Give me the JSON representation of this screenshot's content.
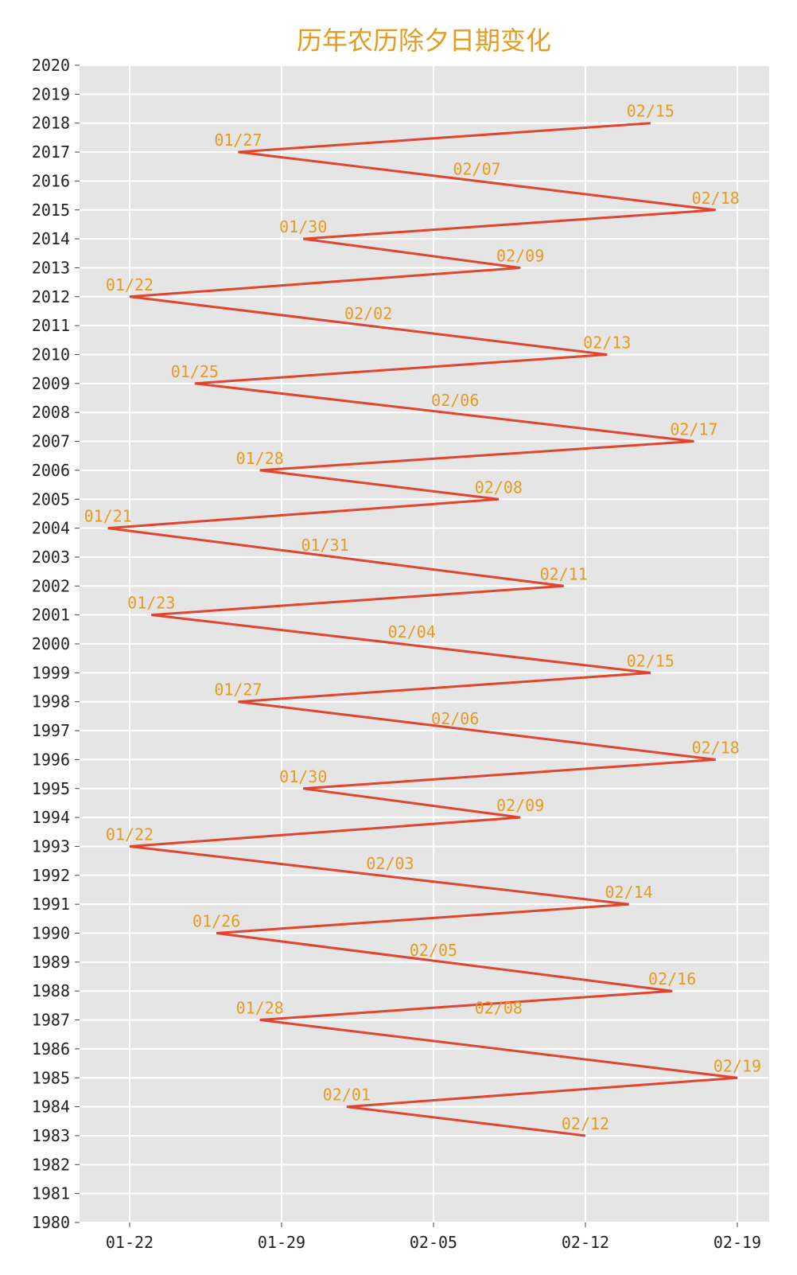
{
  "chart_data": {
    "type": "line",
    "title": "历年农历除夕日期变化",
    "xlabel": "",
    "ylabel": "",
    "x_tick_labels": [
      "01-22",
      "01-29",
      "02-05",
      "02-12",
      "02-19"
    ],
    "x_tick_days": [
      22,
      29,
      36,
      43,
      50
    ],
    "xlim_days": [
      19.5,
      51.5
    ],
    "ylim": [
      1980,
      2020
    ],
    "y_ticks": [
      1980,
      1981,
      1982,
      1983,
      1984,
      1985,
      1986,
      1987,
      1988,
      1989,
      1990,
      1991,
      1992,
      1993,
      1994,
      1995,
      1996,
      1997,
      1998,
      1999,
      2000,
      2001,
      2002,
      2003,
      2004,
      2005,
      2006,
      2007,
      2008,
      2009,
      2010,
      2011,
      2012,
      2013,
      2014,
      2015,
      2016,
      2017,
      2018,
      2019,
      2020
    ],
    "grid": true,
    "line_color": "#e04530",
    "label_color": "#e69b1e",
    "background": "#e5e5e5",
    "points": [
      {
        "year": 1983,
        "label": "02/12",
        "day": 43
      },
      {
        "year": 1984,
        "label": "02/01",
        "day": 32
      },
      {
        "year": 1985,
        "label": "02/19",
        "day": 50
      },
      {
        "year": 1987,
        "label": "02/08",
        "day": 39,
        "label_only": true
      },
      {
        "year": 1987,
        "label": "01/28",
        "day": 28
      },
      {
        "year": 1988,
        "label": "02/16",
        "day": 47
      },
      {
        "year": 1989,
        "label": "02/05",
        "day": 36,
        "label_only": true
      },
      {
        "year": 1990,
        "label": "01/26",
        "day": 26
      },
      {
        "year": 1991,
        "label": "02/14",
        "day": 45
      },
      {
        "year": 1992,
        "label": "02/03",
        "day": 34,
        "label_only": true
      },
      {
        "year": 1993,
        "label": "01/22",
        "day": 22
      },
      {
        "year": 1994,
        "label": "02/09",
        "day": 40
      },
      {
        "year": 1995,
        "label": "01/30",
        "day": 30
      },
      {
        "year": 1996,
        "label": "02/18",
        "day": 49
      },
      {
        "year": 1997,
        "label": "02/06",
        "day": 37,
        "label_only": true
      },
      {
        "year": 1998,
        "label": "01/27",
        "day": 27
      },
      {
        "year": 1999,
        "label": "02/15",
        "day": 46
      },
      {
        "year": 2000,
        "label": "02/04",
        "day": 35,
        "label_only": true
      },
      {
        "year": 2001,
        "label": "01/23",
        "day": 23
      },
      {
        "year": 2002,
        "label": "02/11",
        "day": 42
      },
      {
        "year": 2003,
        "label": "01/31",
        "day": 31,
        "label_only": true
      },
      {
        "year": 2004,
        "label": "01/21",
        "day": 21
      },
      {
        "year": 2005,
        "label": "02/08",
        "day": 39
      },
      {
        "year": 2006,
        "label": "01/28",
        "day": 28
      },
      {
        "year": 2007,
        "label": "02/17",
        "day": 48
      },
      {
        "year": 2008,
        "label": "02/06",
        "day": 37,
        "label_only": true
      },
      {
        "year": 2009,
        "label": "01/25",
        "day": 25
      },
      {
        "year": 2010,
        "label": "02/13",
        "day": 44
      },
      {
        "year": 2011,
        "label": "02/02",
        "day": 33,
        "label_only": true
      },
      {
        "year": 2012,
        "label": "01/22",
        "day": 22
      },
      {
        "year": 2013,
        "label": "02/09",
        "day": 40
      },
      {
        "year": 2014,
        "label": "01/30",
        "day": 30
      },
      {
        "year": 2015,
        "label": "02/18",
        "day": 49
      },
      {
        "year": 2016,
        "label": "02/07",
        "day": 38,
        "label_only": true
      },
      {
        "year": 2017,
        "label": "01/27",
        "day": 27
      },
      {
        "year": 2018,
        "label": "02/15",
        "day": 46
      }
    ]
  }
}
